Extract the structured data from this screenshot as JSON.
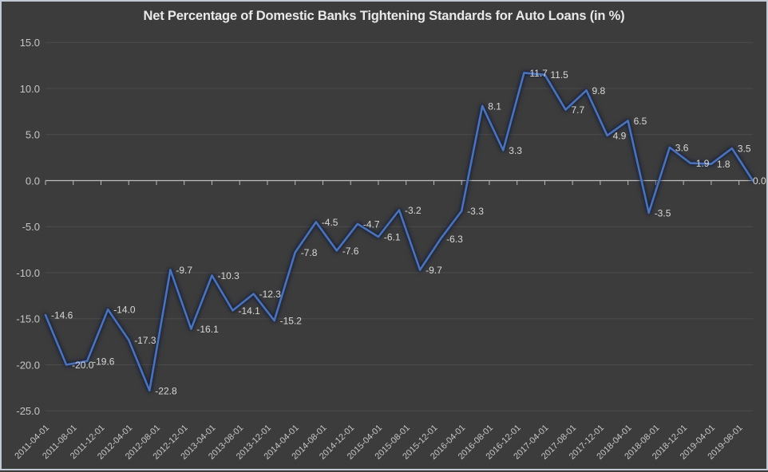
{
  "title": "Net Percentage of Domestic Banks Tightening Standards for Auto Loans (in %)",
  "chart_data": {
    "type": "line",
    "title": "Net Percentage of Domestic Banks Tightening Standards for Auto Loans (in %)",
    "series": [
      {
        "name": "Net percentage of domestic banks tightening standards for auto loans",
        "values": [
          -14.6,
          -20.0,
          -19.6,
          -14.0,
          -17.3,
          -22.8,
          -9.7,
          -16.1,
          -10.3,
          -14.1,
          -12.3,
          -15.2,
          -7.8,
          -4.5,
          -7.6,
          -4.7,
          -6.1,
          -3.2,
          -9.7,
          -6.3,
          -3.3,
          8.1,
          3.3,
          11.7,
          11.5,
          7.7,
          9.8,
          4.9,
          6.5,
          -3.5,
          3.6,
          1.9,
          1.8,
          3.5,
          0.0
        ]
      }
    ],
    "data_labels": [
      "-14.6",
      "-20.0",
      "-19.6",
      "-14.0",
      "-17.3",
      "-22.8",
      "-9.7",
      "-16.1",
      "-10.3",
      "-14.1",
      "-12.3",
      "-15.2",
      "-7.8",
      "-4.5",
      "-7.6",
      "-4.7",
      "-6.1",
      "-3.2",
      "-9.7",
      "-6.3",
      "-3.3",
      "8.1",
      "3.3",
      "11.7",
      "11.5",
      "7.7",
      "9.8",
      "4.9",
      "6.5",
      "-3.5",
      "3.6",
      "1.9",
      "1.8",
      "3.5",
      "0.0"
    ],
    "x_tick_labels": [
      "2011-04-01",
      "2011-08-01",
      "2011-12-01",
      "2012-04-01",
      "2012-08-01",
      "2012-12-01",
      "2013-04-01",
      "2013-08-01",
      "2013-12-01",
      "2014-04-01",
      "2014-08-01",
      "2014-12-01",
      "2015-04-01",
      "2015-08-01",
      "2015-12-01",
      "2016-04-01",
      "2016-08-01",
      "2016-12-01",
      "2017-04-01",
      "2017-08-01",
      "2017-12-01",
      "2018-04-01",
      "2018-08-01",
      "2018-12-01",
      "2019-04-01",
      "2019-08-01"
    ],
    "y_tick_values": [
      15,
      10,
      5,
      0,
      -5,
      -10,
      -15,
      -20,
      -25
    ],
    "y_tick_labels": [
      "15.0",
      "10.0",
      "5.0",
      "0.0",
      "-5.0",
      "-10.0",
      "-15.0",
      "-20.0",
      "-25.0"
    ],
    "ylim": [
      -25,
      15
    ],
    "xlabel": "",
    "ylabel": "",
    "legend": "none",
    "grid": "horizontal-faint",
    "x_layout": {
      "tick_interval_months": 4,
      "point_interval_months": 3,
      "total_span_months": 102
    },
    "colors": {
      "background": "#3C3C3C",
      "border": "#C2CBD5",
      "line": "#4C73B8",
      "grid": "#4C4C4C",
      "axis": "#BDBDBD",
      "tick_text": "#C6C6C6",
      "data_label_text": "#D8D8D8",
      "title_text": "#E9E9E9"
    }
  }
}
